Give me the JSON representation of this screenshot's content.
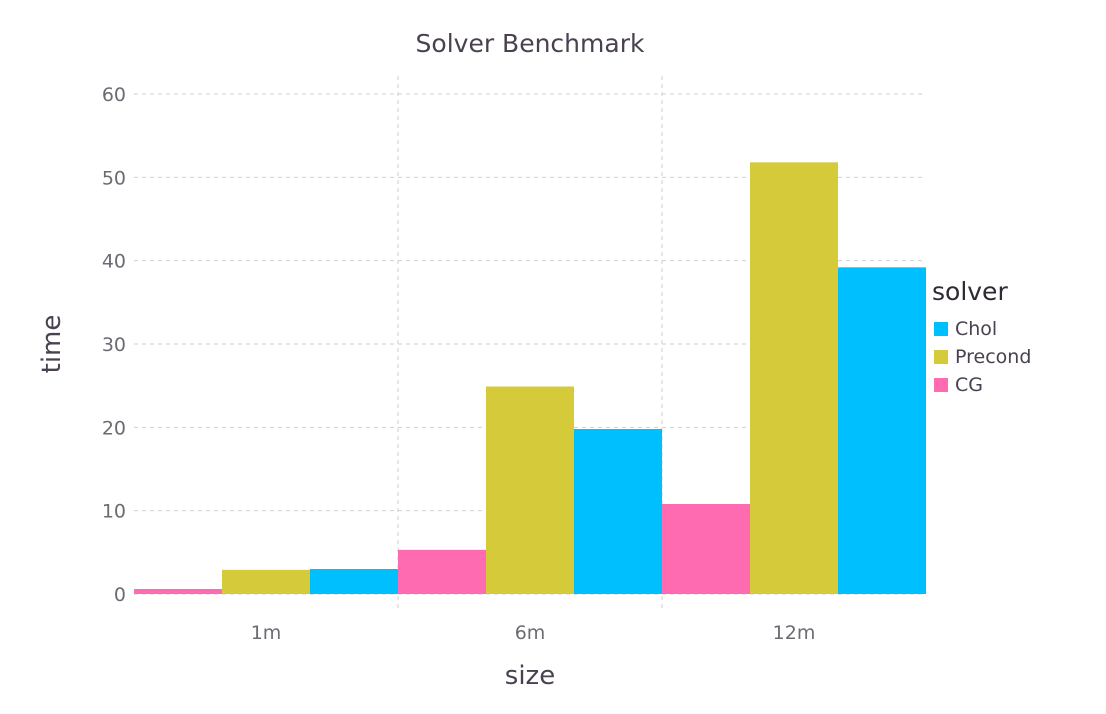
{
  "chart_data": {
    "type": "bar",
    "title": "Solver Benchmark",
    "xlabel": "size",
    "ylabel": "time",
    "categories": [
      "1m",
      "6m",
      "12m"
    ],
    "ylim": [
      0,
      60
    ],
    "yticks": [
      0,
      10,
      20,
      30,
      40,
      50,
      60
    ],
    "grid": true,
    "legend": {
      "title": "solver",
      "position": "right",
      "entries": [
        "Chol",
        "Precond",
        "CG"
      ]
    },
    "bar_order": [
      "CG",
      "Precond",
      "Chol"
    ],
    "series": [
      {
        "name": "Chol",
        "color": "#00bfff",
        "values": [
          3.0,
          19.8,
          39.2
        ]
      },
      {
        "name": "Precond",
        "color": "#d4ca3a",
        "values": [
          2.9,
          24.9,
          51.8
        ]
      },
      {
        "name": "CG",
        "color": "#ff6bb0",
        "values": [
          0.6,
          5.3,
          10.8
        ]
      }
    ]
  }
}
